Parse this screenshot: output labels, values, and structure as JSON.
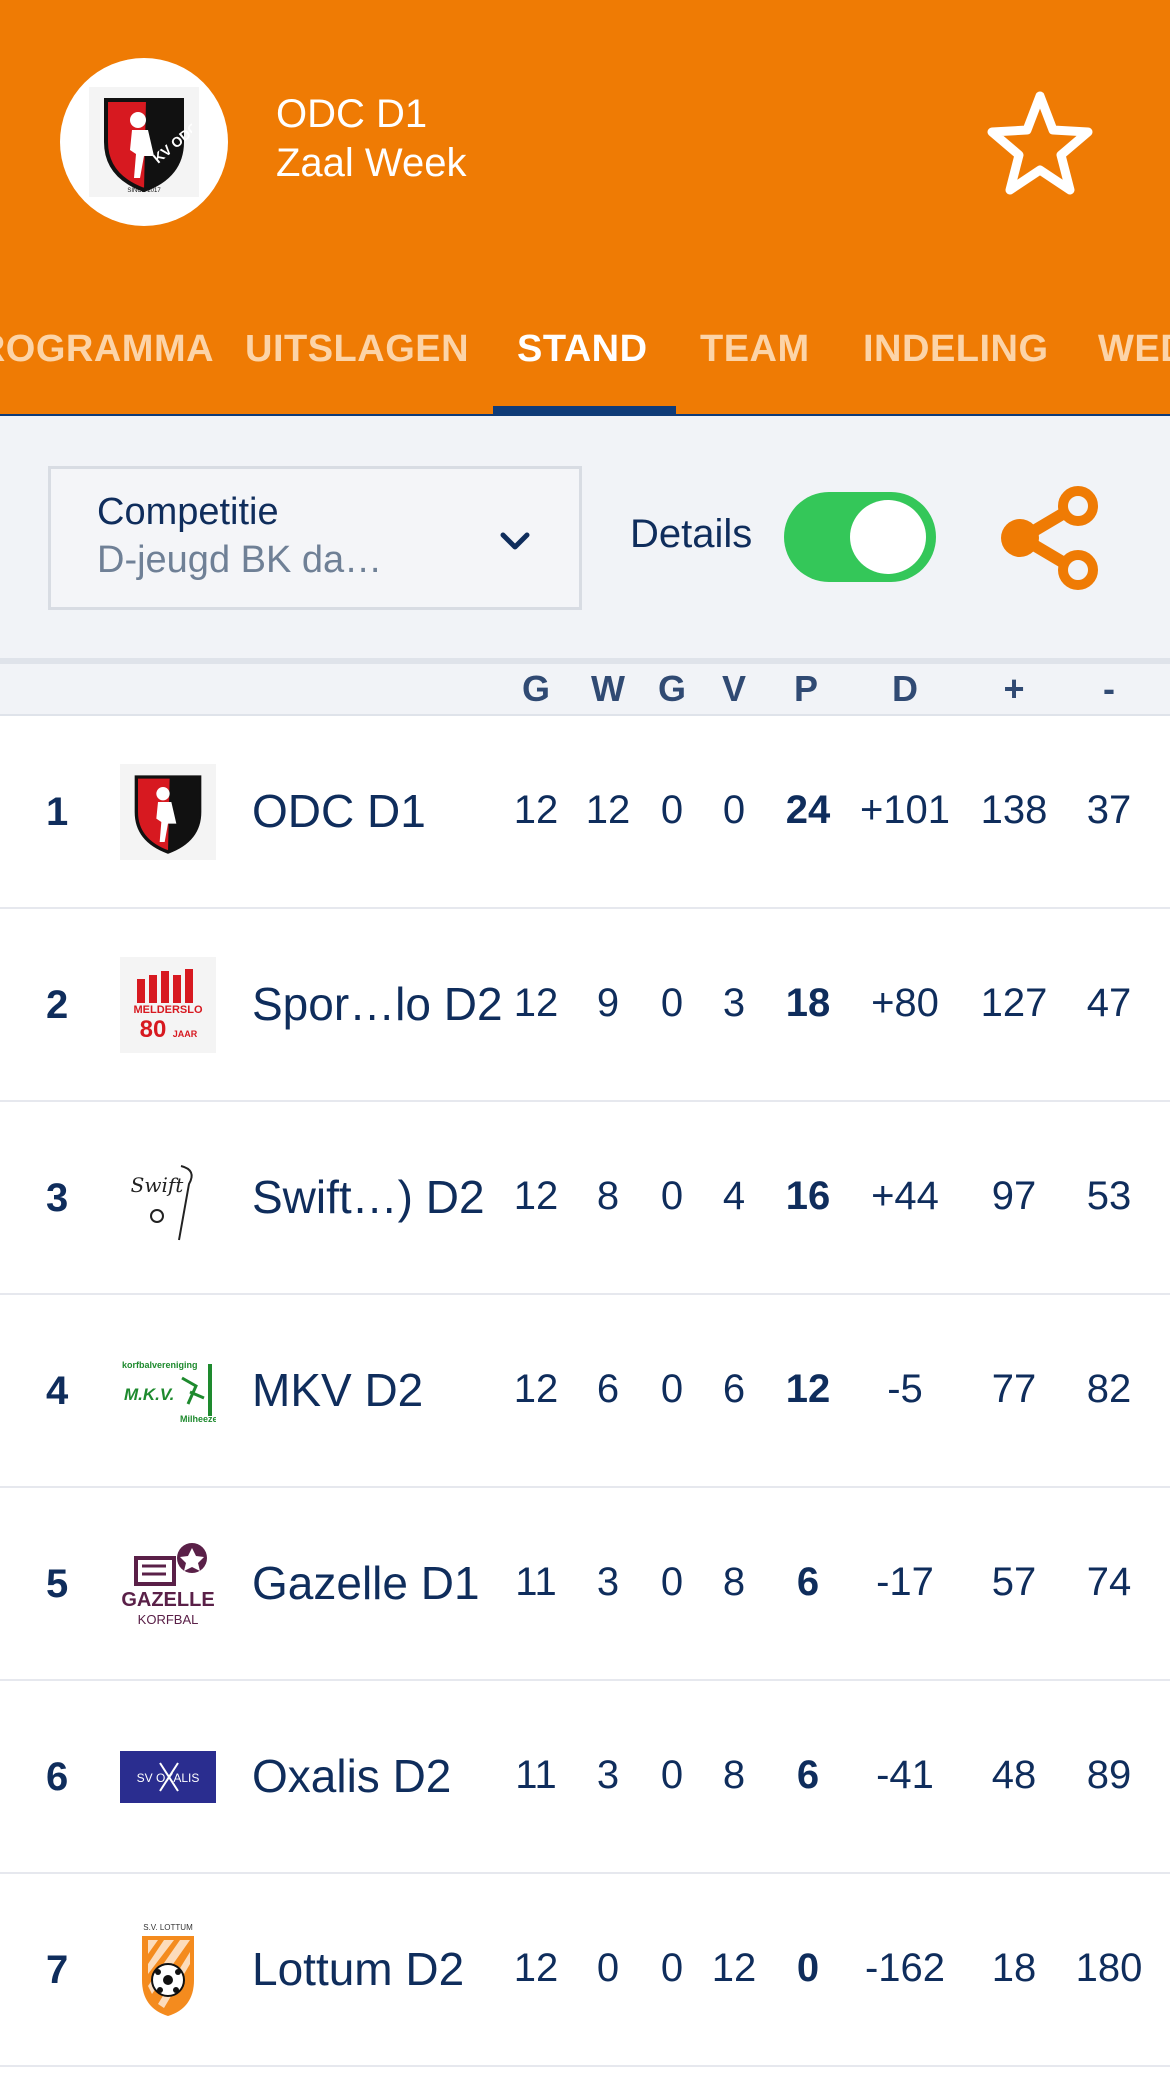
{
  "header": {
    "title": "ODC D1",
    "subtitle": "Zaal Week",
    "tabs": [
      {
        "label": "PROGRAMMA"
      },
      {
        "label": "UITSLAGEN"
      },
      {
        "label": "STAND"
      },
      {
        "label": "TEAM"
      },
      {
        "label": "INDELING"
      },
      {
        "label": "WEDSTRIJDEN"
      }
    ],
    "active_tab": "STAND",
    "colors": {
      "brand": "#ef7b04",
      "accent": "#0f3b78"
    }
  },
  "filter": {
    "competition_label": "Competitie",
    "competition_value": "D-jeugd BK da…",
    "details_label": "Details",
    "details_on": true
  },
  "columns": [
    "G",
    "W",
    "G",
    "V",
    "P",
    "D",
    "+",
    "-"
  ],
  "standings": [
    {
      "rank": "1",
      "team": "ODC D1",
      "logo": "odc-logo",
      "G": "12",
      "W": "12",
      "Gl": "0",
      "V": "0",
      "P": "24",
      "D": "+101",
      "plus": "138",
      "minus": "37"
    },
    {
      "rank": "2",
      "team": "Spor…lo D2",
      "logo": "meldersl0-logo",
      "G": "12",
      "W": "9",
      "Gl": "0",
      "V": "3",
      "P": "18",
      "D": "+80",
      "plus": "127",
      "minus": "47"
    },
    {
      "rank": "3",
      "team": "Swift…) D2",
      "logo": "swift-logo",
      "G": "12",
      "W": "8",
      "Gl": "0",
      "V": "4",
      "P": "16",
      "D": "+44",
      "plus": "97",
      "minus": "53"
    },
    {
      "rank": "4",
      "team": "MKV D2",
      "logo": "mkv-logo",
      "G": "12",
      "W": "6",
      "Gl": "0",
      "V": "6",
      "P": "12",
      "D": "-5",
      "plus": "77",
      "minus": "82"
    },
    {
      "rank": "5",
      "team": "Gazelle D1",
      "logo": "gazelle-logo",
      "G": "11",
      "W": "3",
      "Gl": "0",
      "V": "8",
      "P": "6",
      "D": "-17",
      "plus": "57",
      "minus": "74"
    },
    {
      "rank": "6",
      "team": "Oxalis D2",
      "logo": "oxalis-logo",
      "G": "11",
      "W": "3",
      "Gl": "0",
      "V": "8",
      "P": "6",
      "D": "-41",
      "plus": "48",
      "minus": "89"
    },
    {
      "rank": "7",
      "team": "Lottum D2",
      "logo": "lottum-logo",
      "G": "12",
      "W": "0",
      "Gl": "0",
      "V": "12",
      "P": "0",
      "D": "-162",
      "plus": "18",
      "minus": "180"
    }
  ],
  "logo_text": {
    "odc": "KV ODC",
    "odc_since": "SINCE 2017",
    "melderslo_name": "MELDERSLO",
    "melderslo_num": "80",
    "melderslo_suffix": "JAAR",
    "swift": "Swift",
    "mkv_top": "korfbalvereniging",
    "mkv": "M.K.V.",
    "mkv_city": "Milheeze",
    "gazelle": "GAZELLE",
    "gazelle_sub": "KORFBAL",
    "oxalis": "SV OXALIS",
    "lottum_top": "S.V. LOTTUM"
  }
}
